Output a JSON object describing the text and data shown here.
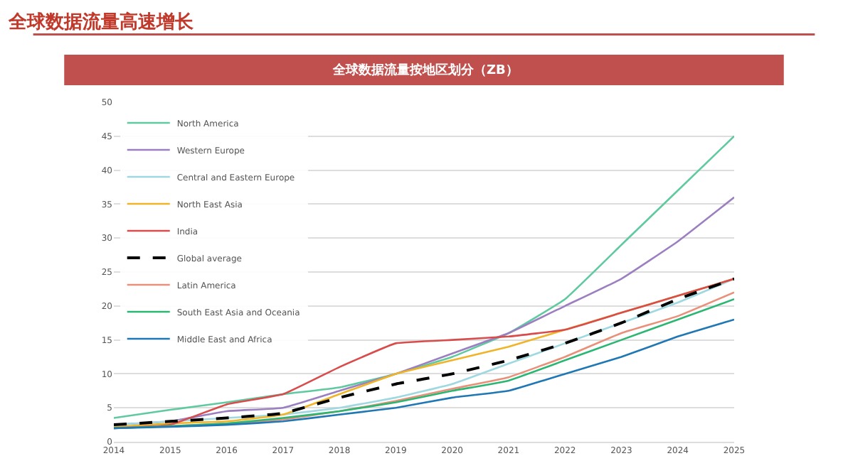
{
  "chart_data": {
    "type": "line",
    "title": "全球数据流量高速增长",
    "subtitle": "全球数据流量按地区划分（ZB）",
    "x": [
      2014,
      2015,
      2016,
      2017,
      2018,
      2019,
      2020,
      2021,
      2022,
      2023,
      2024,
      2025
    ],
    "xlim": [
      2014,
      2025
    ],
    "xticks": [
      2014,
      2015,
      2016,
      2017,
      2018,
      2019,
      2020,
      2021,
      2022,
      2023,
      2024,
      2025
    ],
    "ylim": [
      0,
      50
    ],
    "yticks": [
      0,
      5,
      10,
      15,
      20,
      25,
      30,
      35,
      40,
      45,
      50
    ],
    "grid": "y",
    "legend": "top left",
    "marker": "none",
    "series": [
      {
        "name": "North America",
        "color": "#5fc9a0",
        "values": [
          3.5,
          4.7,
          5.8,
          7,
          8,
          10,
          12.5,
          16,
          21,
          29,
          37,
          45
        ]
      },
      {
        "name": "Western Europe",
        "color": "#9b7fc0",
        "values": [
          2.5,
          3,
          4.5,
          5,
          7.5,
          10,
          13,
          16,
          20,
          24,
          29.5,
          36
        ]
      },
      {
        "name": "Central and Eastern Europe",
        "color": "#9fd8e0",
        "values": [
          2.5,
          3,
          3.5,
          4,
          5,
          6.5,
          8.5,
          11.5,
          14.5,
          17.5,
          20.5,
          24
        ]
      },
      {
        "name": "North East Asia",
        "color": "#f0b429",
        "values": [
          2.2,
          2.7,
          3,
          4,
          7,
          10,
          12,
          14,
          16.5,
          19,
          21.5,
          24
        ]
      },
      {
        "name": "India",
        "color": "#d94c4c",
        "values": [
          2,
          2.5,
          5.5,
          7,
          11,
          14.5,
          15,
          15.5,
          16.5,
          19,
          21.5,
          24
        ]
      },
      {
        "name": "Global average",
        "color": "#000000",
        "line_style": "dashed",
        "values": [
          2.5,
          3,
          3.5,
          4.2,
          6.5,
          8.5,
          10,
          12,
          14.5,
          17.5,
          21,
          24
        ]
      },
      {
        "name": "Latin America",
        "color": "#e8907a",
        "values": [
          2,
          2.3,
          2.7,
          3.3,
          4.5,
          6,
          7.8,
          9.5,
          12.5,
          16,
          18.5,
          22
        ]
      },
      {
        "name": "South East Asia and Oceania",
        "color": "#2bb673",
        "values": [
          2,
          2.3,
          2.7,
          3.5,
          4.5,
          5.8,
          7.5,
          9,
          12,
          15,
          18,
          21
        ]
      },
      {
        "name": "Middle East and Africa",
        "color": "#1f77b4",
        "values": [
          2,
          2.2,
          2.5,
          3,
          4,
          5,
          6.5,
          7.5,
          10,
          12.5,
          15.5,
          18
        ]
      }
    ]
  }
}
